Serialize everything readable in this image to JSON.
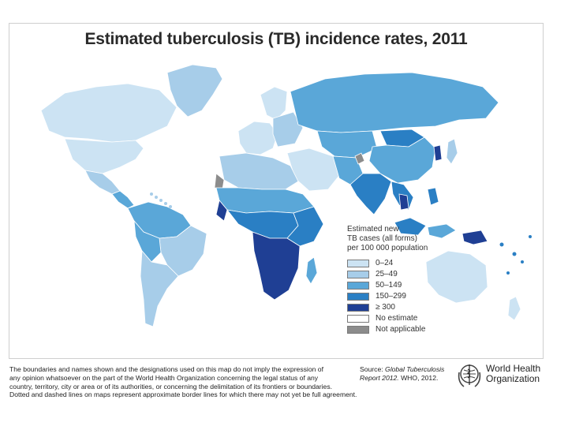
{
  "title": "Estimated tuberculosis (TB) incidence rates, 2011",
  "legend": {
    "title_lines": [
      "Estimated new",
      "TB cases (all forms)",
      "per 100 000 population"
    ],
    "items": [
      {
        "label": "0–24",
        "color": "#cce3f3"
      },
      {
        "label": "25–49",
        "color": "#a7cde9"
      },
      {
        "label": "50–149",
        "color": "#5aa7d8"
      },
      {
        "label": "150–299",
        "color": "#2a7fc4"
      },
      {
        "label": "≥ 300",
        "color": "#1f3f94"
      },
      {
        "label": "No estimate",
        "color": "#ffffff"
      },
      {
        "label": "Not applicable",
        "color": "#8c8c8c"
      }
    ]
  },
  "disclaimer_lines": [
    "The boundaries and names shown and the designations used on this map do not imply the expression of",
    "any opinion whatsoever on the part of the World Health Organization concerning the legal status of any",
    "country, territory, city or area or of its authorities, or concerning the delimitation of its frontiers or boundaries.",
    "Dotted and dashed lines on maps represent approximate border lines for which there may not yet be full agreement."
  ],
  "source": {
    "prefix": "Source: ",
    "italic": "Global Tuberculosis Report 2012.",
    "suffix": " WHO, 2012."
  },
  "organization": {
    "line1": "World Health",
    "line2": "Organization"
  },
  "map_colors": {
    "ocean": "#ffffff",
    "border": "#ffffff"
  }
}
